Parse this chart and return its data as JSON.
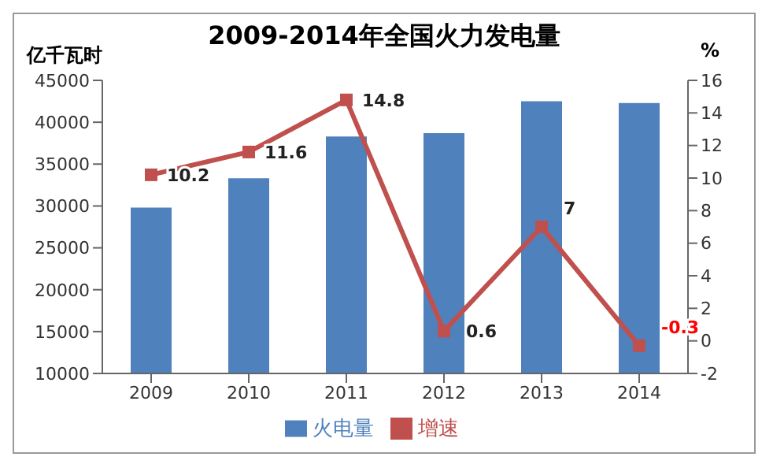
{
  "chart_data": {
    "type": "bar",
    "title": "2009-2014年全国火力发电量",
    "ylabel": "亿千瓦时",
    "y2label": "%",
    "categories": [
      "2009",
      "2010",
      "2011",
      "2012",
      "2013",
      "2014"
    ],
    "series": [
      {
        "name": "火电量",
        "color": "#4f81bd",
        "values": [
          29800,
          33300,
          38300,
          38700,
          42500,
          42300
        ]
      },
      {
        "name": "增速",
        "type": "line",
        "axis": "y2",
        "color": "#c0504d",
        "marker": "square",
        "values": [
          10.2,
          11.6,
          14.8,
          0.6,
          7,
          -0.3
        ],
        "value_labels": [
          "10.2",
          "11.6",
          "14.8",
          "0.6",
          "7",
          "-0.3"
        ]
      }
    ],
    "ylim": [
      10000,
      45000
    ],
    "yticks": [
      10000,
      15000,
      20000,
      25000,
      30000,
      35000,
      40000,
      45000
    ],
    "y2lim": [
      -2,
      16
    ],
    "y2ticks": [
      -2,
      0,
      2,
      4,
      6,
      8,
      10,
      12,
      14,
      16
    ],
    "grid": false,
    "legend": "bottom"
  }
}
